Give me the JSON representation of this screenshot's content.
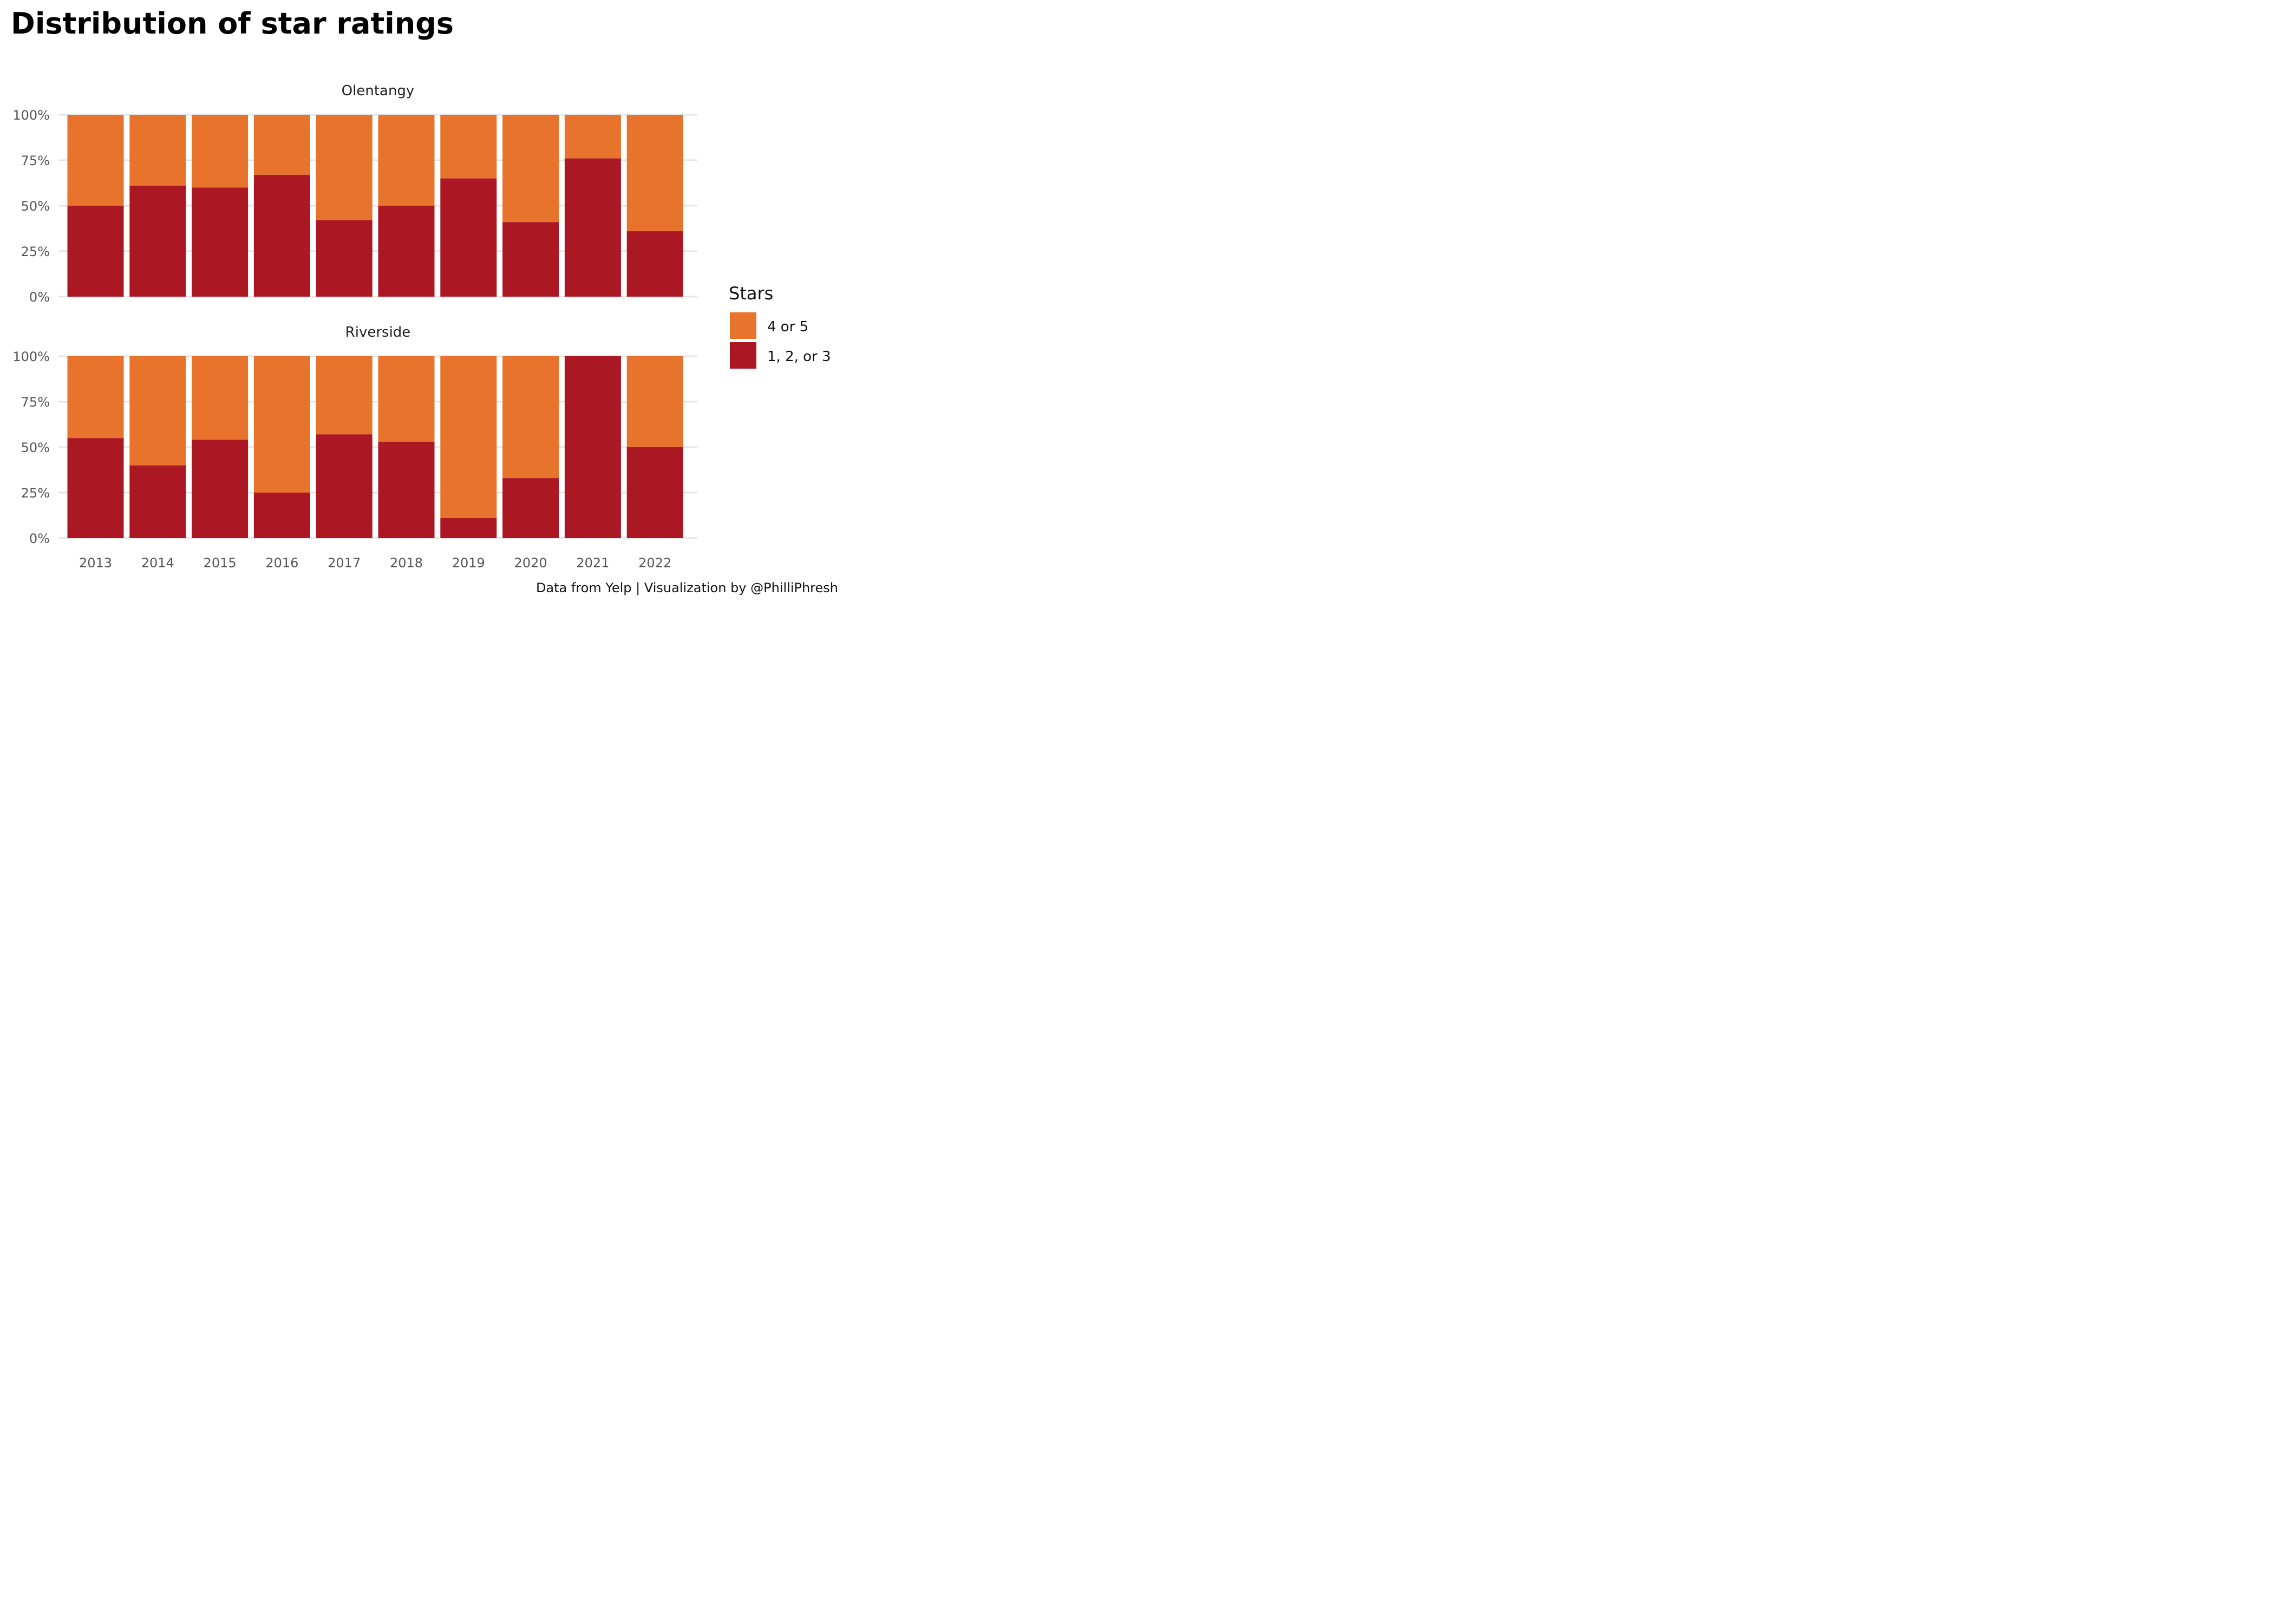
{
  "chart_data": {
    "type": "bar",
    "stacked": true,
    "normalized": true,
    "title": "Distribution of star ratings",
    "caption": "Data from Yelp | Visualization by @PhilliPhresh",
    "legend": {
      "title": "Stars",
      "position": "right"
    },
    "categories": [
      "2013",
      "2014",
      "2015",
      "2016",
      "2017",
      "2018",
      "2019",
      "2020",
      "2021",
      "2022"
    ],
    "y_ticks": [
      "0%",
      "25%",
      "50%",
      "75%",
      "100%"
    ],
    "ylim": [
      0,
      1
    ],
    "grid": true,
    "series_styles": [
      {
        "name": "4 or 5",
        "color": "#E8732C"
      },
      {
        "name": "1, 2, or 3",
        "color": "#AB1722"
      }
    ],
    "facets": [
      {
        "name": "Olentangy",
        "series": [
          {
            "name": "1, 2, or 3",
            "values": [
              0.5,
              0.61,
              0.6,
              0.67,
              0.42,
              0.5,
              0.65,
              0.41,
              0.76,
              0.36
            ]
          },
          {
            "name": "4 or 5",
            "values": [
              0.5,
              0.39,
              0.4,
              0.33,
              0.58,
              0.5,
              0.35,
              0.59,
              0.24,
              0.64
            ]
          }
        ]
      },
      {
        "name": "Riverside",
        "series": [
          {
            "name": "1, 2, or 3",
            "values": [
              0.55,
              0.4,
              0.54,
              0.25,
              0.57,
              0.53,
              0.11,
              0.33,
              1.0,
              0.5
            ]
          },
          {
            "name": "4 or 5",
            "values": [
              0.45,
              0.6,
              0.46,
              0.75,
              0.43,
              0.47,
              0.89,
              0.67,
              0.0,
              0.5
            ]
          }
        ]
      }
    ]
  }
}
